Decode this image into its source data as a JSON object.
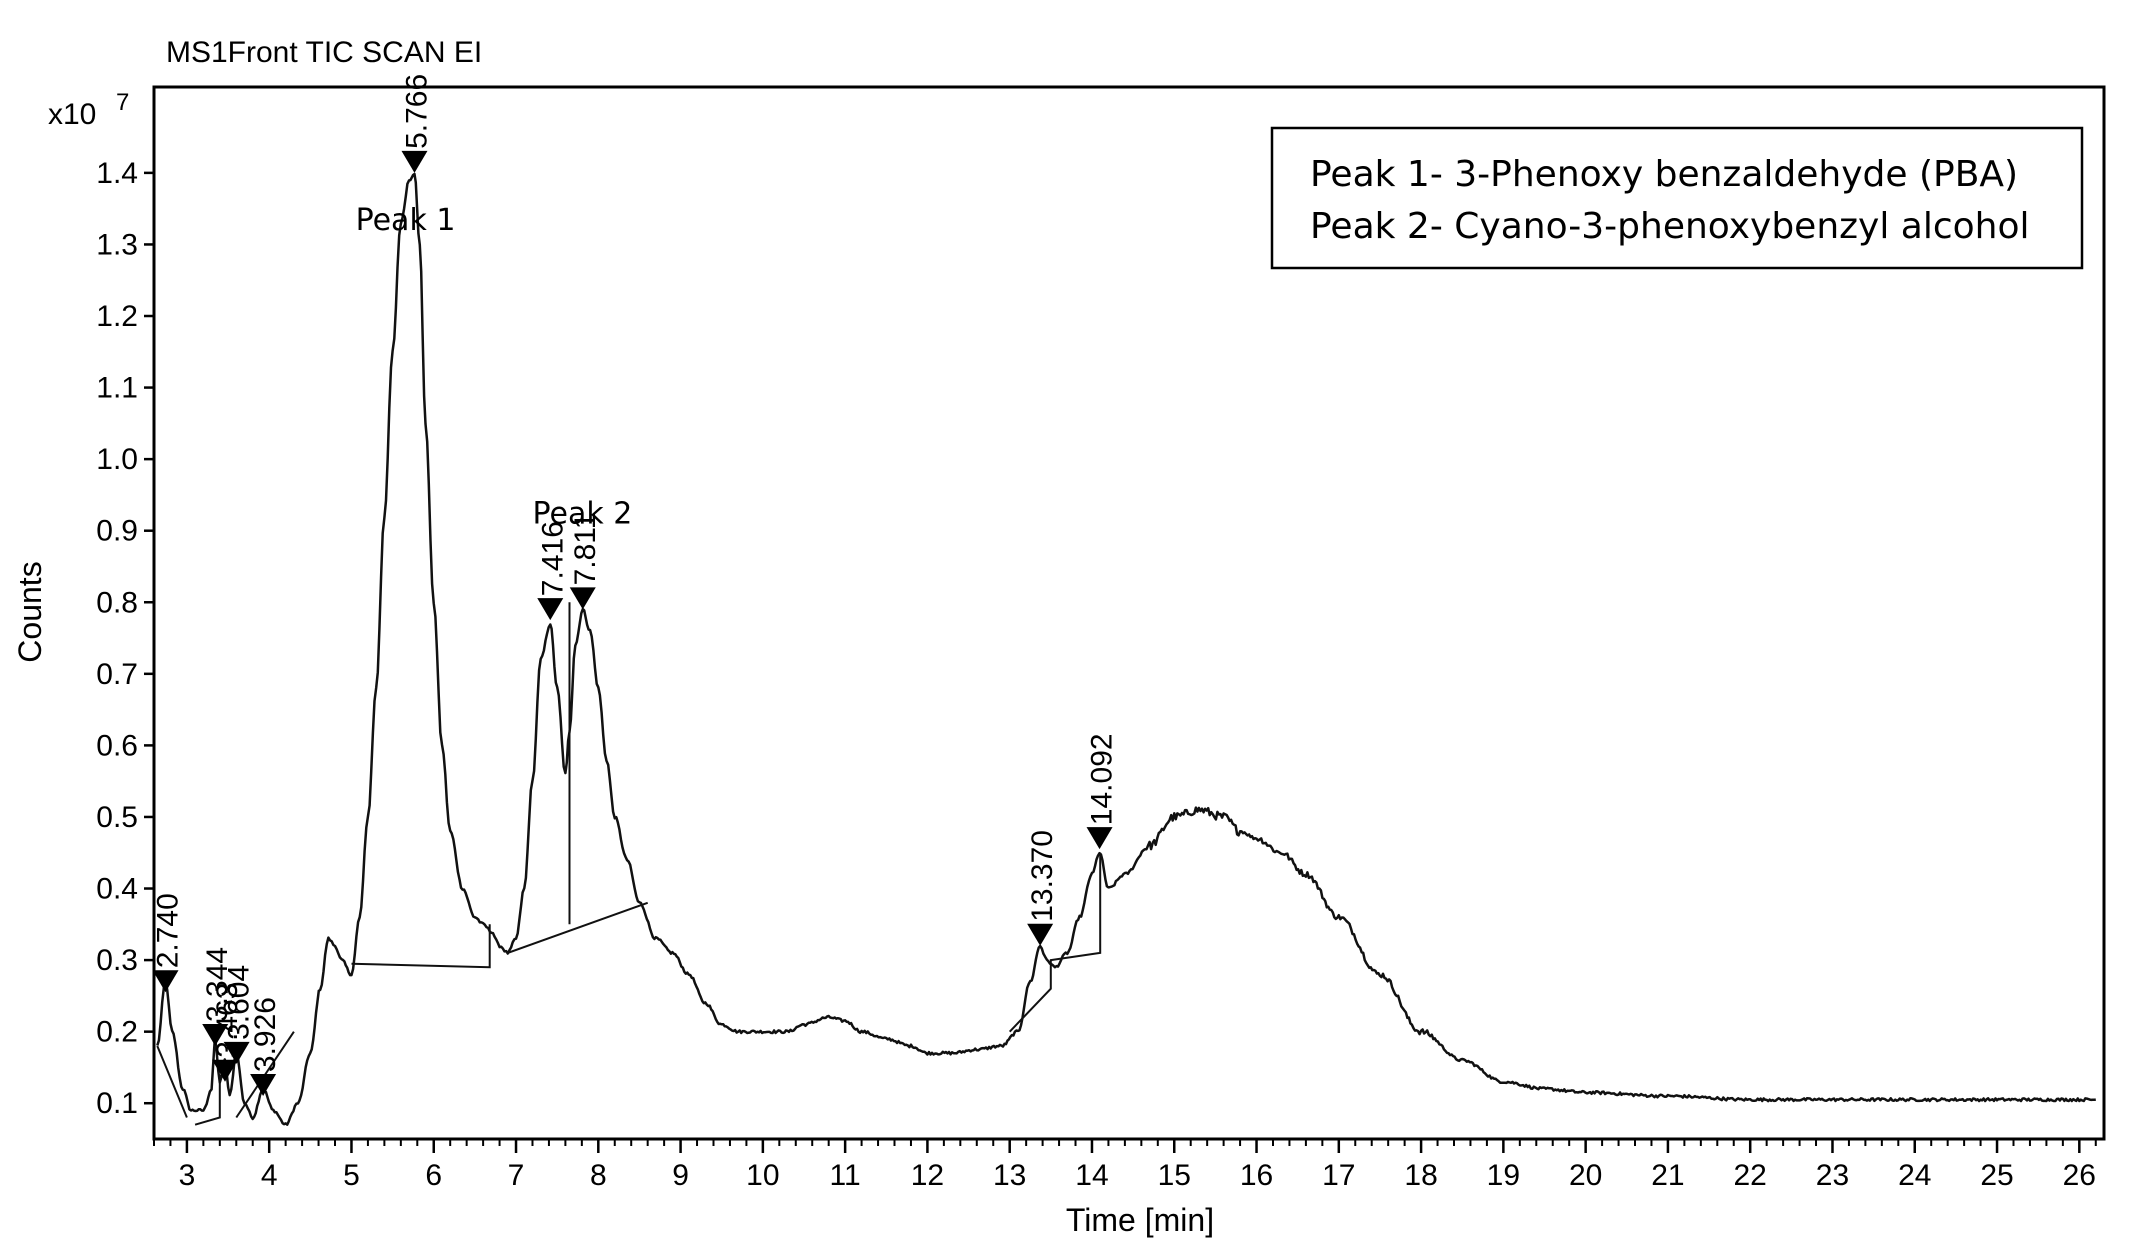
{
  "chart_data": {
    "type": "line",
    "title": "MS1Front TIC SCAN EI",
    "xlabel": "Time [min]",
    "ylabel": "Counts",
    "y_multiplier_label": "x10",
    "y_multiplier_exp": "7",
    "xlim": [
      2.6,
      26.3
    ],
    "ylim": [
      0.05,
      1.52
    ],
    "x_ticks": [
      "3",
      "4",
      "5",
      "6",
      "7",
      "8",
      "9",
      "10",
      "11",
      "12",
      "13",
      "14",
      "15",
      "16",
      "17",
      "18",
      "19",
      "20",
      "21",
      "22",
      "23",
      "24",
      "25",
      "26"
    ],
    "y_ticks": [
      "0.1",
      "0.2",
      "0.3",
      "0.4",
      "0.5",
      "0.6",
      "0.7",
      "0.8",
      "0.9",
      "1.0",
      "1.1",
      "1.2",
      "1.3",
      "1.4"
    ],
    "grid": false,
    "series": [
      {
        "x": [
          2.64,
          2.74,
          2.82,
          2.95,
          3.05,
          3.2,
          3.3,
          3.34,
          3.4,
          3.46,
          3.52,
          3.6,
          3.7,
          3.8,
          3.926,
          4.05,
          4.2,
          4.35,
          4.5,
          4.62,
          4.72,
          4.8,
          4.88,
          5.0,
          5.1,
          5.2,
          5.3,
          5.4,
          5.5,
          5.6,
          5.7,
          5.766,
          5.83,
          5.9,
          6.0,
          6.1,
          6.2,
          6.35,
          6.5,
          6.6,
          6.7,
          6.8,
          6.9,
          7.0,
          7.1,
          7.2,
          7.3,
          7.416,
          7.5,
          7.6,
          7.65,
          7.72,
          7.811,
          7.9,
          8.0,
          8.1,
          8.2,
          8.35,
          8.5,
          8.7,
          8.9,
          9.1,
          9.3,
          9.5,
          9.7,
          9.9,
          10.1,
          10.3,
          10.5,
          10.8,
          11.0,
          11.2,
          11.5,
          11.8,
          12.0,
          12.3,
          12.6,
          12.9,
          13.1,
          13.25,
          13.37,
          13.45,
          13.55,
          13.7,
          13.85,
          14.0,
          14.092,
          14.2,
          14.4,
          14.7,
          15.0,
          15.3,
          15.6,
          15.8,
          16.0,
          16.3,
          16.6,
          17.0,
          17.5,
          18.0,
          18.5,
          19.0,
          19.5,
          20.0,
          21.0,
          22.0,
          23.0,
          24.0,
          25.0,
          26.2
        ],
        "y": [
          0.18,
          0.27,
          0.2,
          0.12,
          0.09,
          0.09,
          0.12,
          0.19,
          0.13,
          0.16,
          0.11,
          0.17,
          0.1,
          0.08,
          0.12,
          0.09,
          0.07,
          0.1,
          0.17,
          0.26,
          0.33,
          0.32,
          0.3,
          0.28,
          0.36,
          0.5,
          0.68,
          0.92,
          1.15,
          1.33,
          1.39,
          1.4,
          1.3,
          1.05,
          0.8,
          0.6,
          0.48,
          0.4,
          0.36,
          0.35,
          0.34,
          0.32,
          0.31,
          0.33,
          0.4,
          0.55,
          0.72,
          0.77,
          0.68,
          0.56,
          0.62,
          0.74,
          0.79,
          0.76,
          0.68,
          0.58,
          0.5,
          0.44,
          0.38,
          0.33,
          0.31,
          0.28,
          0.24,
          0.21,
          0.2,
          0.2,
          0.2,
          0.2,
          0.21,
          0.22,
          0.215,
          0.2,
          0.19,
          0.18,
          0.17,
          0.17,
          0.175,
          0.18,
          0.2,
          0.27,
          0.32,
          0.3,
          0.29,
          0.31,
          0.36,
          0.42,
          0.45,
          0.4,
          0.42,
          0.46,
          0.5,
          0.51,
          0.5,
          0.48,
          0.47,
          0.45,
          0.42,
          0.36,
          0.28,
          0.2,
          0.16,
          0.13,
          0.12,
          0.115,
          0.11,
          0.105,
          0.105,
          0.105,
          0.105,
          0.105
        ]
      }
    ],
    "peaks": [
      {
        "rt": "2.740",
        "x": 2.74,
        "y": 0.255
      },
      {
        "rt": "3.344",
        "x": 3.344,
        "y": 0.18
      },
      {
        "rt": "3.463",
        "x": 3.463,
        "y": 0.13
      },
      {
        "rt": "3.604",
        "x": 3.604,
        "y": 0.155
      },
      {
        "rt": "3.926",
        "x": 3.926,
        "y": 0.11
      },
      {
        "rt": "5.766",
        "x": 5.766,
        "y": 1.4
      },
      {
        "rt": "7.416",
        "x": 7.416,
        "y": 0.775
      },
      {
        "rt": "7.811",
        "x": 7.811,
        "y": 0.79
      },
      {
        "rt": "13.370",
        "x": 13.37,
        "y": 0.32
      },
      {
        "rt": "14.092",
        "x": 14.092,
        "y": 0.455
      }
    ],
    "baselines": [
      [
        [
          5.0,
          0.295
        ],
        [
          6.68,
          0.29
        ],
        [
          6.68,
          0.35
        ]
      ],
      [
        [
          6.9,
          0.31
        ],
        [
          8.6,
          0.38
        ]
      ],
      [
        [
          7.65,
          0.35
        ],
        [
          7.65,
          0.8
        ]
      ],
      [
        [
          13.0,
          0.2
        ],
        [
          13.5,
          0.26
        ],
        [
          13.5,
          0.3
        ],
        [
          14.1,
          0.31
        ],
        [
          14.1,
          0.45
        ]
      ],
      [
        [
          2.64,
          0.18
        ],
        [
          3.0,
          0.08
        ]
      ],
      [
        [
          3.1,
          0.07
        ],
        [
          3.4,
          0.08
        ],
        [
          3.4,
          0.14
        ]
      ],
      [
        [
          3.6,
          0.08
        ],
        [
          4.3,
          0.2
        ]
      ]
    ],
    "annotations": [
      {
        "text": "Peak 1",
        "x": 5.05,
        "y": 1.32
      },
      {
        "text": "Peak 2",
        "x": 7.2,
        "y": 0.91
      }
    ],
    "legend": {
      "position": "top-right",
      "entries": [
        "Peak 1- 3-Phenoxy benzaldehyde (PBA)",
        "Peak 2- Cyano-3-phenoxybenzyl alcohol"
      ]
    }
  }
}
